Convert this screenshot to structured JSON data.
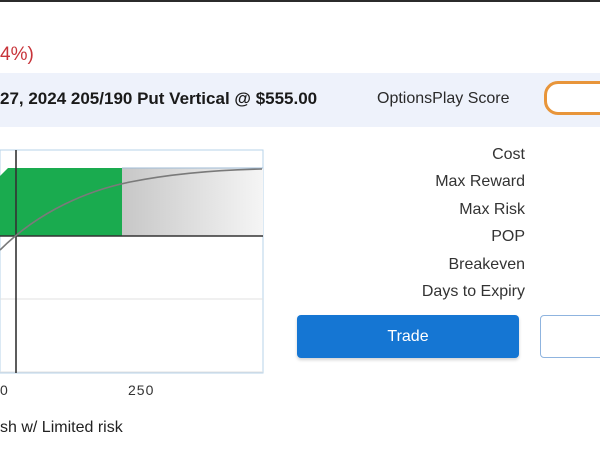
{
  "header": {
    "change_fragment": "4%)",
    "trade_title": "27, 2024 205/190 Put Vertical @ $555.00",
    "score_label": "OptionsPlay Score"
  },
  "colors": {
    "accent_blue": "#1576d3",
    "profit_green": "#1aab4f",
    "loss_red": "#c8343a",
    "score_orange": "#e8953a",
    "header_band": "#eef2fb"
  },
  "metrics": {
    "labels": [
      "Cost",
      "Max Reward",
      "Max Risk",
      "POP",
      "Breakeven",
      "Days to Expiry"
    ]
  },
  "actions": {
    "trade_label": "Trade"
  },
  "chart": {
    "tick_labels": [
      "0",
      "250"
    ]
  },
  "footer": {
    "strategy_description": "sh w/ Limited risk"
  }
}
